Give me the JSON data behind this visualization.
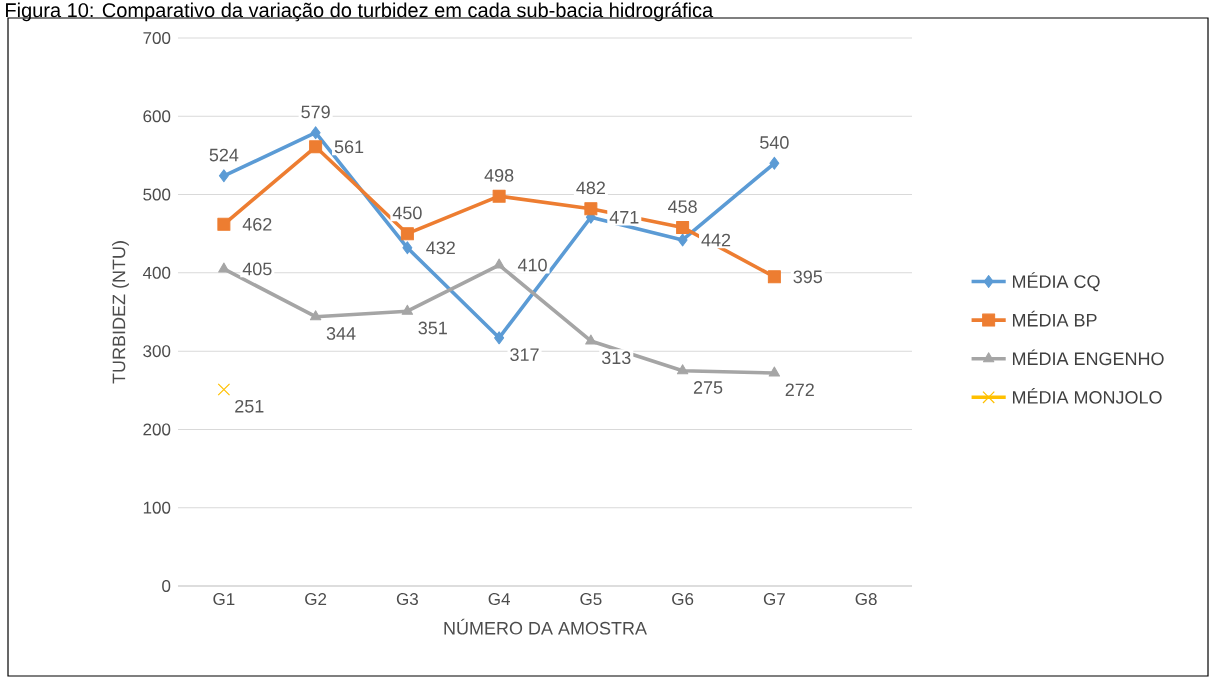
{
  "chart_data": {
    "type": "line",
    "title": "Figura 10: Comparativo da variação do turbidez em cada sub-bacia hidrográfica",
    "xlabel": "NÚMERO DA AMOSTRA",
    "ylabel": "TURBIDEZ (NTU)",
    "categories": [
      "G1",
      "G2",
      "G3",
      "G4",
      "G5",
      "G6",
      "G7",
      "G8"
    ],
    "series": [
      {
        "name": "MÉDIA CQ",
        "color": "#5b9bd5",
        "marker": "diamond",
        "values": [
          524,
          579,
          432,
          317,
          471,
          442,
          540,
          null
        ]
      },
      {
        "name": "MÉDIA BP",
        "color": "#ed7d31",
        "marker": "square",
        "values": [
          462,
          561,
          450,
          498,
          482,
          458,
          395,
          null
        ]
      },
      {
        "name": "MÉDIA ENGENHO",
        "color": "#a5a5a5",
        "marker": "triangle",
        "values": [
          405,
          344,
          351,
          410,
          313,
          275,
          272,
          null
        ]
      },
      {
        "name": "MÉDIA MONJOLO",
        "color": "#ffc000",
        "marker": "cross",
        "values": [
          251,
          null,
          null,
          null,
          null,
          null,
          null,
          null
        ]
      }
    ],
    "ylim": [
      0,
      700
    ],
    "yticks": [
      0,
      100,
      200,
      300,
      400,
      500,
      600,
      700
    ],
    "grid": "y",
    "legend": "right",
    "data_labels": true
  }
}
